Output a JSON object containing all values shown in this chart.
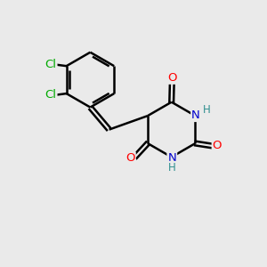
{
  "background_color": "#eaeaea",
  "bond_color": "#000000",
  "bond_width": 1.8,
  "atom_colors": {
    "O": "#ff0000",
    "N": "#0000cd",
    "Cl": "#00aa00",
    "H": "#2f8f8f"
  },
  "figsize": [
    3.0,
    3.0
  ],
  "dpi": 100
}
